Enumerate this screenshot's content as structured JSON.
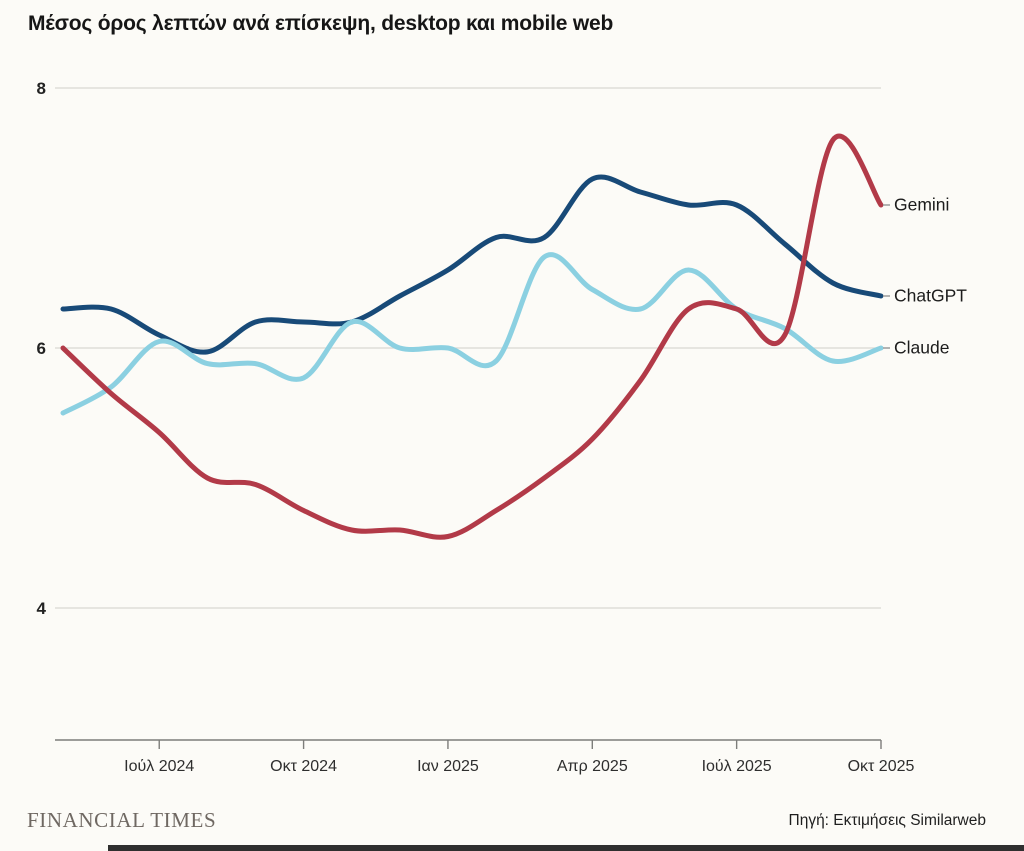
{
  "chart_data": {
    "type": "line",
    "title": "Μέσος όρος λεπτών ανά επίσκεψη, desktop και mobile web",
    "xlabel": "",
    "ylabel": "",
    "x": [
      "Μάι 2024",
      "Ιούν 2024",
      "Ιούλ 2024",
      "Αύγ 2024",
      "Σεπ 2024",
      "Οκτ 2024",
      "Νοέ 2024",
      "Δεκ 2024",
      "Ιαν 2025",
      "Φεβ 2025",
      "Μάρ 2025",
      "Απρ 2025",
      "Μάι 2025",
      "Ιούν 2025",
      "Ιούλ 2025",
      "Αύγ 2025",
      "Σεπ 2025",
      "Οκτ 2025"
    ],
    "x_tick_labels": [
      "Ιούλ 2024",
      "Οκτ 2024",
      "Ιαν 2025",
      "Απρ 2025",
      "Ιούλ 2025",
      "Οκτ 2025"
    ],
    "x_tick_indices": [
      2,
      5,
      8,
      11,
      14,
      17
    ],
    "y_ticks": [
      8,
      6,
      4
    ],
    "ylim": [
      3,
      8.4
    ],
    "grid": "horizontal",
    "legend_position": "right-end-of-line",
    "series": [
      {
        "name": "Gemini",
        "color": "#b23a48",
        "z": 3,
        "values": [
          6.0,
          5.65,
          5.35,
          5.0,
          4.95,
          4.75,
          4.6,
          4.6,
          4.55,
          4.75,
          5.0,
          5.3,
          5.75,
          6.3,
          6.3,
          6.1,
          7.6,
          7.1
        ]
      },
      {
        "name": "ChatGPT",
        "color": "#184a78",
        "z": 1,
        "values": [
          6.3,
          6.3,
          6.1,
          5.97,
          6.2,
          6.2,
          6.2,
          6.4,
          6.6,
          6.85,
          6.85,
          7.3,
          7.2,
          7.1,
          7.1,
          6.8,
          6.5,
          6.4
        ]
      },
      {
        "name": "Claude",
        "color": "#8bd0e1",
        "z": 2,
        "values": [
          5.5,
          5.7,
          6.05,
          5.88,
          5.88,
          5.77,
          6.2,
          6.0,
          6.0,
          5.9,
          6.7,
          6.45,
          6.3,
          6.6,
          6.3,
          6.15,
          5.9,
          6.0
        ]
      }
    ]
  },
  "footer": {
    "brand": "FINANCIAL TIMES",
    "source": "Πηγή: Εκτιμήσεις Similarweb"
  },
  "colors": {
    "background": "#fcfbf7",
    "gridline": "#d9d8d3",
    "axis": "#7d7d7a",
    "tick_text": "#2e2e2e",
    "title_text": "#161616",
    "legend_text": "#1c1c1c",
    "brand_text": "#6f6862",
    "source_text": "#1f1f1f",
    "connector": "#9b9b9b",
    "bottom_bar": "#2f2f2f"
  }
}
